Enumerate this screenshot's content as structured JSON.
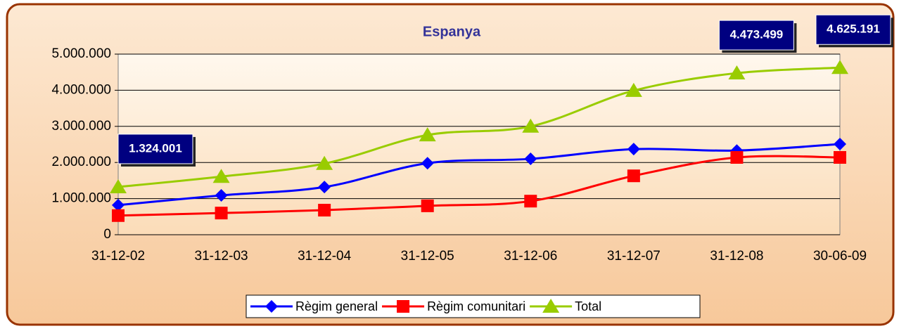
{
  "chart_data": {
    "type": "line",
    "title": "Espanya",
    "categories": [
      "31-12-02",
      "31-12-03",
      "31-12-04",
      "31-12-05",
      "31-12-06",
      "31-12-07",
      "31-12-08",
      "30-06-09"
    ],
    "series": [
      {
        "name": "Règim general",
        "color": "#0000ff",
        "marker": "diamond",
        "values": [
          820000,
          1090000,
          1320000,
          1980000,
          2100000,
          2370000,
          2330000,
          2510000
        ]
      },
      {
        "name": "Règim comunitari",
        "color": "#ff0000",
        "marker": "square",
        "values": [
          530000,
          600000,
          680000,
          800000,
          930000,
          1630000,
          2140000,
          2140000
        ]
      },
      {
        "name": "Total",
        "color": "#99cc00",
        "marker": "triangle",
        "values": [
          1324001,
          1610000,
          1970000,
          2760000,
          3000000,
          3990000,
          4473499,
          4625191
        ],
        "value_labels": [
          "1.324.001",
          null,
          null,
          null,
          null,
          null,
          "4.473.499",
          "4.625.191"
        ]
      }
    ],
    "ylim": [
      0,
      5000000
    ],
    "yticks": [
      0,
      {
        "value": 1000000,
        "label": "1.000.000"
      },
      {
        "value": 2000000,
        "label": "2.000.000"
      },
      {
        "value": 3000000,
        "label": "3.000.000"
      },
      {
        "value": 4000000,
        "label": "4.000.000"
      },
      {
        "value": 5000000,
        "label": "5.000.000"
      }
    ],
    "grid": true,
    "legend": "bottom"
  }
}
